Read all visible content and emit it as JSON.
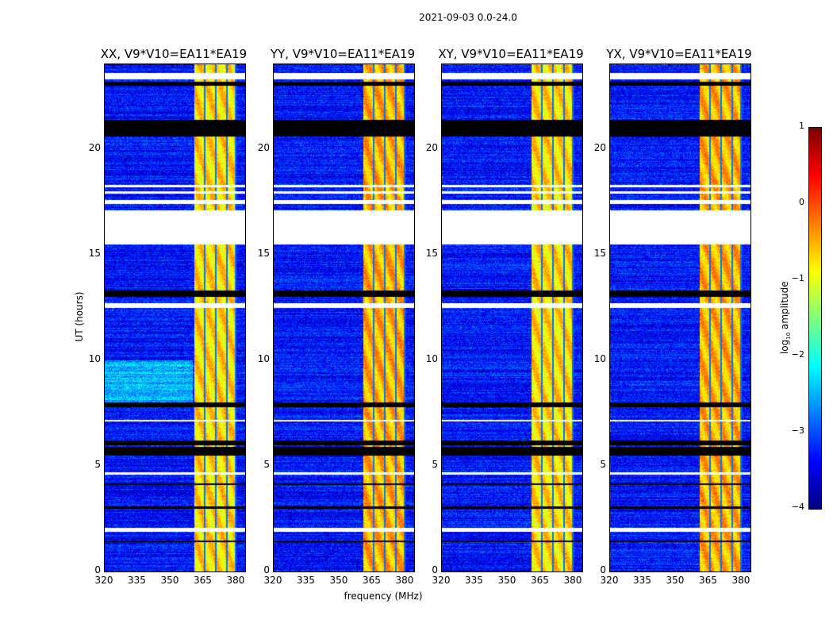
{
  "chart_data": {
    "type": "heatmap",
    "title": "2021-09-03 0.0-24.0",
    "ylabel": "UT (hours)",
    "xlabel": "frequency (MHz)",
    "xlim": [
      320,
      384
    ],
    "ylim": [
      0,
      24
    ],
    "xticks": [
      320,
      335,
      350,
      365,
      380
    ],
    "yticks": [
      0,
      5,
      10,
      15,
      20
    ],
    "panels": [
      {
        "title": "XX, V9*V10=EA11*EA19"
      },
      {
        "title": "YY, V9*V10=EA11*EA19"
      },
      {
        "title": "XY, V9*V10=EA11*EA19"
      },
      {
        "title": "YX, V9*V10=EA11*EA19"
      }
    ],
    "colorbar": {
      "label": "log10 amplitude",
      "label_main": "log",
      "label_sub": "10",
      "label_rest": " amplitude",
      "range": [
        -4,
        1
      ],
      "ticks": [
        1,
        0,
        -1,
        -2,
        -3,
        -4
      ],
      "tick_labels": [
        "1",
        "0",
        "−1",
        "−2",
        "−3",
        "−4"
      ],
      "colormap": "jet"
    },
    "background_level": -3.3,
    "bright_band": {
      "freq_range": [
        360.5,
        380
      ],
      "level": -0.7,
      "dark_lines_mhz": [
        365.5,
        370.5,
        375.5,
        379.5
      ]
    },
    "flagged_white_hours": [
      [
        15.5,
        17.1
      ],
      [
        23.3,
        23.6
      ],
      [
        1.9,
        2.1
      ],
      [
        17.4,
        17.6
      ],
      [
        17.9,
        18.0
      ],
      [
        18.2,
        18.3
      ],
      [
        12.5,
        12.7
      ],
      [
        4.6,
        4.7
      ],
      [
        7.1,
        7.2
      ]
    ],
    "flagged_black_hours": [
      [
        20.6,
        21.4
      ],
      [
        13.0,
        13.3
      ],
      [
        7.8,
        8.0
      ],
      [
        5.5,
        5.9
      ],
      [
        6.0,
        6.2
      ],
      [
        23.0,
        23.2
      ],
      [
        1.4,
        1.5
      ],
      [
        4.1,
        4.2
      ],
      [
        3.0,
        3.1
      ]
    ]
  }
}
